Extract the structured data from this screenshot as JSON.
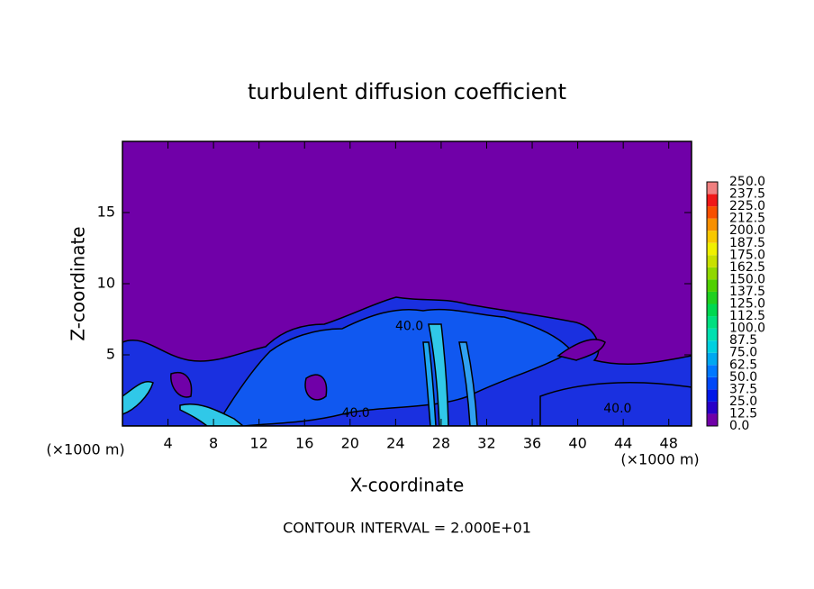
{
  "chart_data": {
    "type": "contour",
    "title": "turbulent diffusion coefficient",
    "x_label": "X-coordinate",
    "y_label": "Z-coordinate",
    "y_unit": "(×1000 m)",
    "x_unit": "(×1000 m)",
    "footer": "CONTOUR INTERVAL = 2.000E+01",
    "xlim": [
      0,
      50
    ],
    "xticks": [
      4,
      8,
      12,
      16,
      20,
      24,
      28,
      32,
      36,
      40,
      44,
      48
    ],
    "ylim": [
      0,
      20
    ],
    "yticks": [
      5,
      10,
      15
    ],
    "colorbar": {
      "levels": [
        {
          "value": 0,
          "label": "0.0"
        },
        12.5,
        {
          "value": 25,
          "label": "25.0"
        },
        37.5,
        {
          "value": 50,
          "label": "50.0"
        },
        62.5,
        {
          "value": 75,
          "label": "75.0"
        },
        87.5,
        {
          "value": 100,
          "label": "100.0"
        },
        112.5,
        {
          "value": 125,
          "label": "125.0"
        },
        137.5,
        {
          "value": 150,
          "label": "150.0"
        },
        162.5,
        {
          "value": 175,
          "label": "175.0"
        },
        187.5,
        {
          "value": 200,
          "label": "200.0"
        },
        212.5,
        {
          "value": 225,
          "label": "225.0"
        },
        237.5,
        {
          "value": 250,
          "label": "250.0"
        }
      ],
      "colors": [
        "#7000a8",
        "#2800c8",
        "#0018e8",
        "#0048f8",
        "#0078ff",
        "#00a8f0",
        "#00d0e0",
        "#00e0b0",
        "#00e080",
        "#00d850",
        "#20d020",
        "#50d000",
        "#90d800",
        "#c8e000",
        "#f0f000",
        "#f8c800",
        "#f89000",
        "#f85000",
        "#f01818",
        "#f08080"
      ]
    },
    "contour_labels": [
      {
        "value": 40,
        "label": "40.0",
        "x": 20.5,
        "z": 0.9
      },
      {
        "value": 40,
        "label": "40.0",
        "x": 25.2,
        "z": 7.0
      },
      {
        "value": 40,
        "label": "40.0",
        "x": 43.5,
        "z": 1.2
      }
    ]
  }
}
